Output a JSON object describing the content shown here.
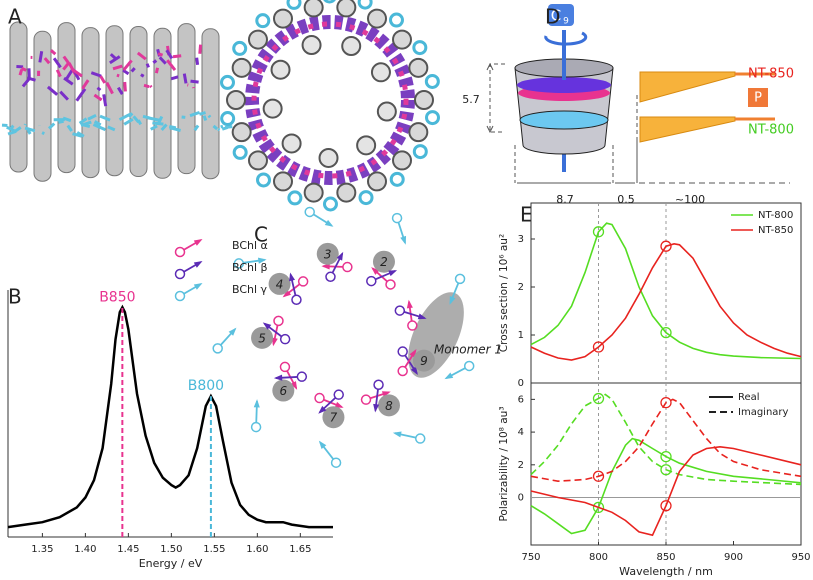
{
  "panel_labels": [
    "A",
    "B",
    "C",
    "D",
    "E"
  ],
  "chart_data": [
    {
      "type": "line",
      "xlabel": "Energy / eV",
      "color": "#000000",
      "x": [
        1.31,
        1.33,
        1.35,
        1.37,
        1.39,
        1.4,
        1.41,
        1.42,
        1.43,
        1.435,
        1.44,
        1.443,
        1.446,
        1.45,
        1.46,
        1.47,
        1.48,
        1.49,
        1.5,
        1.505,
        1.51,
        1.52,
        1.53,
        1.54,
        1.546,
        1.552,
        1.56,
        1.57,
        1.58,
        1.59,
        1.6,
        1.61,
        1.62,
        1.63,
        1.64,
        1.65,
        1.66,
        1.67,
        1.688
      ],
      "values": [
        0.04,
        0.05,
        0.06,
        0.08,
        0.12,
        0.16,
        0.23,
        0.36,
        0.62,
        0.8,
        0.91,
        0.93,
        0.91,
        0.84,
        0.58,
        0.41,
        0.3,
        0.24,
        0.21,
        0.2,
        0.21,
        0.25,
        0.36,
        0.53,
        0.57,
        0.53,
        0.39,
        0.22,
        0.13,
        0.09,
        0.07,
        0.06,
        0.06,
        0.06,
        0.05,
        0.045,
        0.04,
        0.04,
        0.04
      ],
      "xlim": [
        1.31,
        1.688
      ],
      "ylim": [
        0,
        1
      ],
      "xticks": [
        1.35,
        {
          "value": 1.4,
          "label": "1.40"
        },
        1.45,
        {
          "value": 1.5,
          "label": "1.50"
        },
        1.55,
        {
          "value": 1.6,
          "label": "1.60"
        },
        1.65
      ],
      "annotations": [
        {
          "text": "B850",
          "x": 1.443,
          "color": "#e8338f"
        },
        {
          "text": "B800",
          "x": 1.546,
          "color": "#4ab8d8"
        }
      ]
    },
    {
      "type": "line",
      "ylabel": "Cross section / 10⁶ au²",
      "frame": true,
      "legend": "upper right",
      "xlim": [
        750,
        950
      ],
      "ylim": [
        0,
        3.75
      ],
      "yticks": [
        0,
        1,
        2,
        3
      ],
      "guides": [
        800,
        850
      ],
      "series": [
        {
          "name": "NT-800",
          "color": "#55dd22",
          "x": [
            750,
            760,
            770,
            780,
            790,
            800,
            806,
            810,
            820,
            830,
            840,
            850,
            860,
            870,
            880,
            890,
            900,
            920,
            950
          ],
          "values": [
            0.8,
            0.95,
            1.2,
            1.6,
            2.3,
            3.15,
            3.33,
            3.3,
            2.8,
            2.0,
            1.4,
            1.05,
            0.85,
            0.72,
            0.64,
            0.59,
            0.56,
            0.53,
            0.51
          ]
        },
        {
          "name": "NT-850",
          "color": "#e8231f",
          "x": [
            750,
            760,
            770,
            780,
            790,
            800,
            810,
            820,
            830,
            840,
            850,
            856,
            860,
            870,
            880,
            890,
            900,
            910,
            920,
            930,
            940,
            950
          ],
          "values": [
            0.75,
            0.62,
            0.52,
            0.48,
            0.55,
            0.75,
            1.0,
            1.35,
            1.85,
            2.4,
            2.85,
            2.9,
            2.88,
            2.6,
            2.1,
            1.6,
            1.25,
            1.0,
            0.85,
            0.72,
            0.62,
            0.55
          ]
        }
      ]
    },
    {
      "type": "line",
      "ylabel": "Polarizability / 10⁸ au³",
      "xlabel": "Wavelength / nm",
      "frame": true,
      "zero_line": true,
      "xlim": [
        750,
        950
      ],
      "ylim": [
        -2.9,
        7.0
      ],
      "xticks": [
        750,
        800,
        850,
        900,
        950
      ],
      "yticks": [
        0,
        2,
        4,
        6
      ],
      "guides": [
        800,
        850
      ],
      "legend_entries": [
        {
          "label": "Real",
          "dash": false
        },
        {
          "label": "Imaginary",
          "dash": true
        }
      ],
      "series": [
        {
          "color": "#55dd22",
          "dash": false,
          "x": [
            750,
            760,
            770,
            780,
            790,
            800,
            810,
            820,
            825,
            830,
            840,
            850,
            860,
            880,
            900,
            925,
            950
          ],
          "values": [
            -0.5,
            -1.0,
            -1.6,
            -2.2,
            -2.0,
            -0.6,
            1.6,
            3.2,
            3.6,
            3.5,
            3.0,
            2.5,
            2.1,
            1.6,
            1.3,
            1.1,
            0.9
          ]
        },
        {
          "color": "#55dd22",
          "dash": true,
          "x": [
            750,
            760,
            770,
            780,
            790,
            800,
            805,
            810,
            820,
            830,
            840,
            850,
            860,
            880,
            900,
            950
          ],
          "values": [
            1.4,
            2.2,
            3.2,
            4.5,
            5.6,
            6.05,
            6.3,
            6.0,
            4.6,
            3.1,
            2.2,
            1.7,
            1.4,
            1.1,
            1.0,
            0.8
          ]
        },
        {
          "color": "#e8231f",
          "dash": false,
          "x": [
            750,
            770,
            790,
            810,
            820,
            830,
            840,
            850,
            860,
            870,
            880,
            890,
            900,
            920,
            950
          ],
          "values": [
            0.4,
            0.0,
            -0.3,
            -0.9,
            -1.4,
            -2.1,
            -2.3,
            -0.5,
            1.6,
            2.6,
            3.0,
            3.1,
            3.0,
            2.6,
            2.0
          ]
        },
        {
          "color": "#e8231f",
          "dash": true,
          "x": [
            750,
            770,
            790,
            800,
            810,
            820,
            830,
            840,
            850,
            855,
            860,
            870,
            880,
            890,
            900,
            920,
            950
          ],
          "values": [
            1.3,
            1.0,
            1.1,
            1.3,
            1.6,
            2.2,
            3.1,
            4.5,
            5.8,
            6.0,
            5.8,
            4.7,
            3.6,
            2.7,
            2.2,
            1.7,
            1.3
          ]
        }
      ]
    }
  ],
  "panel_c": {
    "legend": [
      "BChl α",
      "BChl β",
      "BChl γ"
    ],
    "monomer_label": "Monomer 1",
    "numbers": [
      "2",
      "3",
      "4",
      "5",
      "6",
      "7",
      "8",
      "9"
    ]
  },
  "panel_d": {
    "axis": "C",
    "axis_sub": "9",
    "height": "5.7",
    "width": "8.7",
    "gap": "0.5",
    "distance": "~100",
    "top_label": "NT-850",
    "bottom_label": "NT-800",
    "pulse": "P"
  }
}
